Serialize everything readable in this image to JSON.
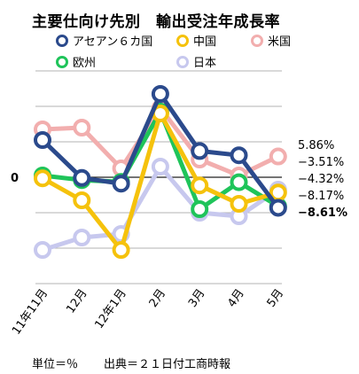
{
  "chart_data": {
    "type": "line",
    "title": "主要仕向け先別　輸出受注年成長率",
    "categories": [
      "11年11月",
      "12月",
      "12年1月",
      "2月",
      "3月",
      "4月",
      "5月"
    ],
    "series": [
      {
        "name": "アセアン６カ国",
        "color": "#2b4a8c",
        "values": [
          10.5,
          -0.2,
          -1.8,
          23.5,
          7.4,
          6.2,
          -8.61
        ],
        "end_label": "−8.61%",
        "bold": true
      },
      {
        "name": "中国",
        "color": "#f5c20c",
        "values": [
          -0.3,
          -6.5,
          -20.5,
          18.0,
          -2.3,
          -7.5,
          -4.32
        ],
        "end_label": "−4.32%"
      },
      {
        "name": "米国",
        "color": "#f2aeae",
        "values": [
          13.5,
          14.0,
          2.5,
          19.5,
          5.0,
          0.5,
          5.86
        ],
        "end_label": "5.86%"
      },
      {
        "name": "欧州",
        "color": "#1fc45a",
        "values": [
          0.5,
          -0.8,
          -1.3,
          18.5,
          -9.0,
          -1.4,
          -8.17
        ],
        "end_label": "−8.17%"
      },
      {
        "name": "日本",
        "color": "#c7c8ee",
        "values": [
          -20.5,
          -17.0,
          -16.0,
          3.0,
          -10.0,
          -11.0,
          -3.51
        ],
        "end_label": "−3.51%"
      }
    ],
    "y_zero_label": "0",
    "ylim": [
      -30,
      30
    ],
    "grid": true,
    "legend": "top"
  },
  "footer": {
    "unit": "単位＝％",
    "source": "出典＝２１日付工商時報"
  }
}
